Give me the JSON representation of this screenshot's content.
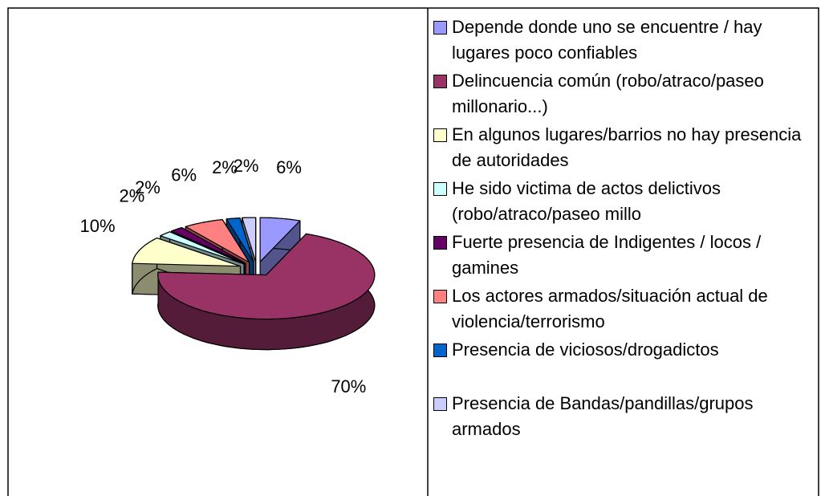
{
  "chart_data": {
    "type": "pie3d",
    "categories": [
      "Depende donde uno se encuentre / hay lugares poco confiables",
      "Delincuencia común (robo/atraco/paseo millonario...)",
      "En algunos lugares/barrios no hay presencia de autoridades",
      "He sido victima de actos delictivos (robo/atraco/paseo millo",
      "Fuerte presencia de Indigentes / locos / gamines",
      "Los actores armados/situación actual de violencia/terrorismo",
      "Presencia de viciosos/drogadictos",
      "Presencia de Bandas/pandillas/grupos armados"
    ],
    "values": [
      6,
      70,
      10,
      2,
      2,
      6,
      2,
      2
    ],
    "value_labels": [
      "6%",
      "70%",
      "10%",
      "2%",
      "2%",
      "6%",
      "2%",
      "2%"
    ],
    "colors": [
      "#9999ff",
      "#993366",
      "#ffffcc",
      "#ccffff",
      "#660066",
      "#ff8080",
      "#0066cc",
      "#ccccff"
    ],
    "legend": "right"
  }
}
